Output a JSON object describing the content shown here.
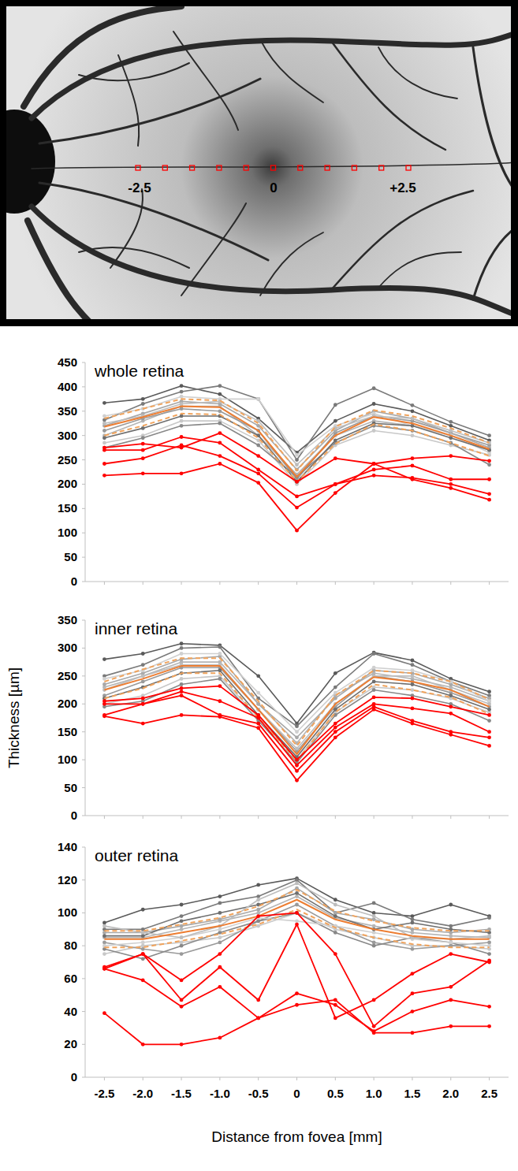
{
  "fundus": {
    "labels": [
      "-2.5",
      "0",
      "+2.5"
    ]
  },
  "chart_data": [
    {
      "type": "line",
      "title": "whole retina",
      "x": [
        -2.5,
        -2,
        -1.5,
        -1,
        -0.5,
        0,
        0.5,
        1,
        1.5,
        2,
        2.5
      ],
      "xlim": [
        -2.75,
        2.75
      ],
      "xticks": [
        -2.5,
        {
          "value": -2,
          "label": "-2.0"
        },
        -1.5,
        {
          "value": -1,
          "label": "-1.0"
        },
        -0.5,
        0,
        0.5,
        {
          "value": 1,
          "label": "1.0"
        },
        1.5,
        {
          "value": 2,
          "label": "2.0"
        },
        2.5
      ],
      "ylim": [
        0,
        450
      ],
      "yticks": [
        0,
        50,
        100,
        150,
        200,
        250,
        300,
        350,
        400,
        450
      ],
      "grid": false,
      "tick_labels": "y",
      "series": [
        {
          "color": "#5a5a5a",
          "marker": "circle",
          "values": [
            367,
            375,
            402,
            385,
            335,
            265,
            330,
            365,
            350,
            320,
            290
          ]
        },
        {
          "color": "#7a7a7a",
          "marker": "circle",
          "values": [
            332,
            365,
            390,
            402,
            375,
            250,
            363,
            397,
            362,
            328,
            300
          ]
        },
        {
          "color": "#b5b5b5",
          "marker": "circle",
          "values": [
            300,
            330,
            360,
            360,
            300,
            220,
            300,
            330,
            320,
            300,
            270
          ]
        },
        {
          "color": "#c8c8c8",
          "marker": "circle",
          "values": [
            285,
            300,
            330,
            330,
            290,
            200,
            280,
            310,
            300,
            280,
            260
          ]
        },
        {
          "color": "#9a9a9a",
          "marker": "circle",
          "values": [
            310,
            335,
            355,
            350,
            310,
            210,
            305,
            340,
            330,
            305,
            280
          ]
        },
        {
          "color": "#888888",
          "marker": "circle",
          "values": [
            275,
            295,
            320,
            325,
            280,
            215,
            285,
            320,
            310,
            285,
            240
          ]
        },
        {
          "color": "#a8a8a8",
          "marker": "circle",
          "values": [
            320,
            345,
            370,
            365,
            320,
            230,
            310,
            350,
            335,
            305,
            275
          ]
        },
        {
          "color": "#d0d0d0",
          "marker": "circle",
          "values": [
            340,
            355,
            380,
            375,
            375,
            260,
            320,
            345,
            320,
            300,
            265
          ]
        },
        {
          "color": "#6e6e6e",
          "marker": "circle",
          "values": [
            295,
            315,
            340,
            340,
            300,
            205,
            290,
            325,
            320,
            295,
            270
          ]
        },
        {
          "color": "#bdbdbd",
          "marker": "circle",
          "values": [
            325,
            340,
            365,
            370,
            330,
            240,
            315,
            340,
            335,
            310,
            285
          ]
        },
        {
          "color": "#f0a35c",
          "line_style": "dashed",
          "values": [
            335,
            355,
            375,
            372,
            325,
            228,
            318,
            352,
            340,
            315,
            285
          ]
        },
        {
          "color": "#f0a35c",
          "line_style": "dashed",
          "values": [
            300,
            320,
            345,
            343,
            295,
            205,
            283,
            323,
            310,
            285,
            258
          ]
        },
        {
          "color": "#ed7d31",
          "line_style": "solid",
          "values": [
            318,
            338,
            360,
            358,
            310,
            215,
            300,
            338,
            325,
            300,
            272
          ]
        },
        {
          "color": "#ff0000",
          "marker": "circle",
          "values": [
            275,
            283,
            275,
            305,
            258,
            205,
            253,
            242,
            253,
            258,
            248
          ]
        },
        {
          "color": "#ff0000",
          "marker": "circle",
          "values": [
            270,
            270,
            297,
            285,
            230,
            175,
            200,
            230,
            238,
            210,
            210
          ]
        },
        {
          "color": "#ff0000",
          "marker": "circle",
          "values": [
            242,
            253,
            280,
            258,
            222,
            152,
            200,
            218,
            213,
            200,
            180
          ]
        },
        {
          "color": "#ff0000",
          "marker": "circle",
          "values": [
            218,
            222,
            222,
            242,
            203,
            105,
            182,
            242,
            210,
            192,
            168
          ]
        }
      ]
    },
    {
      "type": "line",
      "title": "inner retina",
      "y_label": "Thickness [µm]",
      "x": [
        -2.5,
        -2,
        -1.5,
        -1,
        -0.5,
        0,
        0.5,
        1,
        1.5,
        2,
        2.5
      ],
      "xlim": [
        -2.75,
        2.75
      ],
      "xticks": [
        -2.5,
        {
          "value": -2,
          "label": "-2.0"
        },
        -1.5,
        {
          "value": -1,
          "label": "-1.0"
        },
        -0.5,
        0,
        0.5,
        {
          "value": 1,
          "label": "1.0"
        },
        1.5,
        {
          "value": 2,
          "label": "2.0"
        },
        2.5
      ],
      "ylim": [
        0,
        350
      ],
      "yticks": [
        0,
        50,
        100,
        150,
        200,
        250,
        300,
        350
      ],
      "grid": false,
      "tick_labels": "y",
      "series": [
        {
          "color": "#5a5a5a",
          "marker": "circle",
          "values": [
            280,
            290,
            308,
            305,
            250,
            165,
            255,
            292,
            278,
            245,
            222
          ]
        },
        {
          "color": "#7a7a7a",
          "marker": "circle",
          "values": [
            250,
            270,
            300,
            302,
            210,
            160,
            230,
            290,
            270,
            240,
            215
          ]
        },
        {
          "color": "#b5b5b5",
          "marker": "circle",
          "values": [
            230,
            250,
            275,
            275,
            200,
            130,
            215,
            255,
            245,
            230,
            205
          ]
        },
        {
          "color": "#c8c8c8",
          "marker": "circle",
          "values": [
            200,
            215,
            245,
            250,
            175,
            100,
            185,
            230,
            225,
            210,
            185
          ]
        },
        {
          "color": "#9a9a9a",
          "marker": "circle",
          "values": [
            215,
            240,
            265,
            265,
            190,
            115,
            195,
            250,
            240,
            220,
            195
          ]
        },
        {
          "color": "#888888",
          "marker": "circle",
          "values": [
            195,
            205,
            235,
            245,
            170,
            95,
            180,
            225,
            215,
            200,
            170
          ]
        },
        {
          "color": "#a8a8a8",
          "marker": "circle",
          "values": [
            235,
            255,
            280,
            285,
            200,
            140,
            210,
            260,
            255,
            235,
            210
          ]
        },
        {
          "color": "#d0d0d0",
          "marker": "circle",
          "values": [
            245,
            260,
            290,
            290,
            220,
            150,
            220,
            265,
            260,
            240,
            205
          ]
        },
        {
          "color": "#6e6e6e",
          "marker": "circle",
          "values": [
            210,
            230,
            255,
            260,
            180,
            105,
            190,
            240,
            235,
            215,
            190
          ]
        },
        {
          "color": "#bdbdbd",
          "marker": "circle",
          "values": [
            225,
            250,
            270,
            270,
            190,
            120,
            200,
            250,
            250,
            225,
            200
          ]
        },
        {
          "color": "#f0a35c",
          "line_style": "dashed",
          "values": [
            240,
            262,
            282,
            282,
            205,
            125,
            215,
            260,
            255,
            240,
            208
          ]
        },
        {
          "color": "#f0a35c",
          "line_style": "dashed",
          "values": [
            210,
            228,
            255,
            255,
            175,
            98,
            185,
            235,
            225,
            212,
            182
          ]
        },
        {
          "color": "#ed7d31",
          "line_style": "solid",
          "values": [
            225,
            245,
            268,
            268,
            190,
            110,
            200,
            248,
            240,
            225,
            195
          ]
        },
        {
          "color": "#ff0000",
          "marker": "circle",
          "values": [
            205,
            210,
            228,
            232,
            180,
            100,
            165,
            212,
            210,
            195,
            180
          ]
        },
        {
          "color": "#ff0000",
          "marker": "circle",
          "values": [
            200,
            200,
            222,
            205,
            175,
            90,
            158,
            200,
            192,
            183,
            150
          ]
        },
        {
          "color": "#ff0000",
          "marker": "circle",
          "values": [
            180,
            200,
            215,
            180,
            165,
            80,
            150,
            195,
            170,
            150,
            140
          ]
        },
        {
          "color": "#ff0000",
          "marker": "circle",
          "values": [
            178,
            165,
            180,
            177,
            157,
            63,
            140,
            190,
            165,
            145,
            125
          ]
        }
      ]
    },
    {
      "type": "line",
      "title": "outer retina",
      "x_label": "Distance from fovea [mm]",
      "x": [
        -2.5,
        -2,
        -1.5,
        -1,
        -0.5,
        0,
        0.5,
        1,
        1.5,
        2,
        2.5
      ],
      "xlim": [
        -2.75,
        2.75
      ],
      "xticks": [
        -2.5,
        {
          "value": -2,
          "label": "-2.0"
        },
        -1.5,
        {
          "value": -1,
          "label": "-1.0"
        },
        -0.5,
        0,
        0.5,
        {
          "value": 1,
          "label": "1.0"
        },
        1.5,
        {
          "value": 2,
          "label": "2.0"
        },
        2.5
      ],
      "ylim": [
        0,
        140
      ],
      "yticks": [
        0,
        20,
        40,
        60,
        80,
        100,
        120,
        140
      ],
      "grid": false,
      "tick_labels": true,
      "series": [
        {
          "color": "#5a5a5a",
          "marker": "circle",
          "values": [
            94,
            102,
            105,
            110,
            117,
            121,
            108,
            100,
            98,
            105,
            98
          ]
        },
        {
          "color": "#7a7a7a",
          "marker": "circle",
          "values": [
            90,
            90,
            98,
            106,
            110,
            120,
            100,
            106,
            96,
            92,
            97
          ]
        },
        {
          "color": "#b5b5b5",
          "marker": "circle",
          "values": [
            85,
            85,
            90,
            95,
            100,
            110,
            97,
            92,
            88,
            86,
            85
          ]
        },
        {
          "color": "#c8c8c8",
          "marker": "circle",
          "values": [
            75,
            80,
            82,
            85,
            92,
            100,
            90,
            85,
            80,
            80,
            78
          ]
        },
        {
          "color": "#9a9a9a",
          "marker": "circle",
          "values": [
            82,
            78,
            75,
            82,
            95,
            105,
            92,
            82,
            78,
            80,
            82
          ]
        },
        {
          "color": "#888888",
          "marker": "circle",
          "values": [
            78,
            72,
            80,
            88,
            95,
            100,
            88,
            80,
            85,
            82,
            75
          ]
        },
        {
          "color": "#a8a8a8",
          "marker": "circle",
          "values": [
            88,
            88,
            92,
            96,
            102,
            115,
            100,
            96,
            90,
            88,
            90
          ]
        },
        {
          "color": "#d0d0d0",
          "marker": "circle",
          "values": [
            80,
            82,
            85,
            90,
            97,
            95,
            92,
            88,
            84,
            82,
            80
          ]
        },
        {
          "color": "#6e6e6e",
          "marker": "circle",
          "values": [
            86,
            86,
            95,
            100,
            105,
            112,
            98,
            90,
            94,
            90,
            88
          ]
        },
        {
          "color": "#bdbdbd",
          "marker": "circle",
          "values": [
            92,
            88,
            85,
            92,
            108,
            118,
            105,
            98,
            85,
            84,
            86
          ]
        },
        {
          "color": "#f0a35c",
          "line_style": "dashed",
          "values": [
            89,
            89,
            93,
            97,
            104,
            114,
            101,
            95,
            91,
            89,
            89
          ]
        },
        {
          "color": "#f0a35c",
          "line_style": "dashed",
          "values": [
            79,
            79,
            83,
            87,
            93,
            102,
            91,
            85,
            81,
            79,
            79
          ]
        },
        {
          "color": "#ed7d31",
          "line_style": "solid",
          "values": [
            84,
            84,
            88,
            92,
            98,
            108,
            96,
            90,
            86,
            84,
            84
          ]
        },
        {
          "color": "#ff0000",
          "marker": "circle",
          "values": [
            67,
            75,
            59,
            75,
            98,
            100,
            75,
            31,
            51,
            55,
            71
          ]
        },
        {
          "color": "#ff0000",
          "marker": "circle",
          "values": [
            66,
            75,
            47,
            67,
            47,
            93,
            36,
            47,
            63,
            75,
            70
          ]
        },
        {
          "color": "#ff0000",
          "marker": "circle",
          "values": [
            66,
            59,
            43,
            55,
            36,
            51,
            44,
            28,
            40,
            47,
            43
          ]
        },
        {
          "color": "#ff0000",
          "marker": "circle",
          "values": [
            39,
            20,
            20,
            24,
            36,
            44,
            47,
            27,
            27,
            31,
            31
          ]
        }
      ]
    }
  ]
}
